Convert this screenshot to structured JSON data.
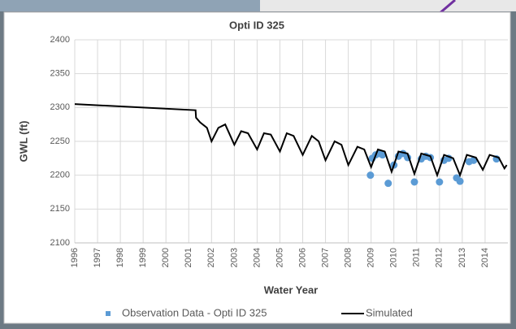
{
  "chart_data": {
    "type": "line",
    "title": "Opti ID 325",
    "x_label": "Water Year",
    "y_label": "GWL (ft)",
    "xlim": [
      1996,
      2015
    ],
    "xticks": [
      1996,
      1997,
      1998,
      1999,
      2000,
      2001,
      2002,
      2003,
      2004,
      2005,
      2006,
      2007,
      2008,
      2009,
      2010,
      2011,
      2012,
      2013,
      2014
    ],
    "ylim": [
      2100,
      2400
    ],
    "yticks": [
      2100,
      2150,
      2200,
      2250,
      2300,
      2350,
      2400
    ],
    "grid": true,
    "legend": "bottom",
    "series": [
      {
        "name": "Observation Data - Opti ID 325",
        "color": "#5b9bd5",
        "style": "markers",
        "x": [
          2008.97,
          2009.05,
          2009.2,
          2009.35,
          2009.5,
          2009.75,
          2010.0,
          2010.2,
          2010.4,
          2010.6,
          2010.9,
          2011.2,
          2011.4,
          2011.6,
          2012.0,
          2012.2,
          2012.4,
          2012.75,
          2012.9,
          2013.3,
          2013.5,
          2014.5
        ],
        "values": [
          2200,
          2225,
          2230,
          2232,
          2230,
          2188,
          2215,
          2228,
          2232,
          2226,
          2190,
          2224,
          2228,
          2226,
          2190,
          2222,
          2225,
          2196,
          2191,
          2220,
          2222,
          2224
        ]
      },
      {
        "name": "Simulated",
        "color": "#000000",
        "style": "line",
        "x": [
          1996.0,
          2001.3,
          2001.32,
          2001.5,
          2001.8,
          2002.0,
          2002.3,
          2002.6,
          2003.0,
          2003.3,
          2003.6,
          2004.0,
          2004.3,
          2004.6,
          2005.0,
          2005.3,
          2005.6,
          2006.0,
          2006.4,
          2006.7,
          2007.0,
          2007.4,
          2007.7,
          2008.0,
          2008.4,
          2008.7,
          2009.0,
          2009.3,
          2009.6,
          2009.9,
          2010.2,
          2010.6,
          2010.9,
          2011.2,
          2011.6,
          2011.9,
          2012.2,
          2012.6,
          2012.9,
          2013.2,
          2013.6,
          2013.9,
          2014.2,
          2014.6,
          2014.85,
          2014.95
        ],
        "values": [
          2305,
          2296,
          2285,
          2278,
          2270,
          2250,
          2270,
          2275,
          2245,
          2265,
          2262,
          2238,
          2262,
          2260,
          2235,
          2262,
          2258,
          2230,
          2258,
          2250,
          2222,
          2250,
          2245,
          2215,
          2242,
          2238,
          2212,
          2238,
          2235,
          2205,
          2235,
          2232,
          2202,
          2232,
          2228,
          2200,
          2230,
          2225,
          2200,
          2230,
          2226,
          2208,
          2230,
          2226,
          2210,
          2215
        ]
      }
    ]
  }
}
